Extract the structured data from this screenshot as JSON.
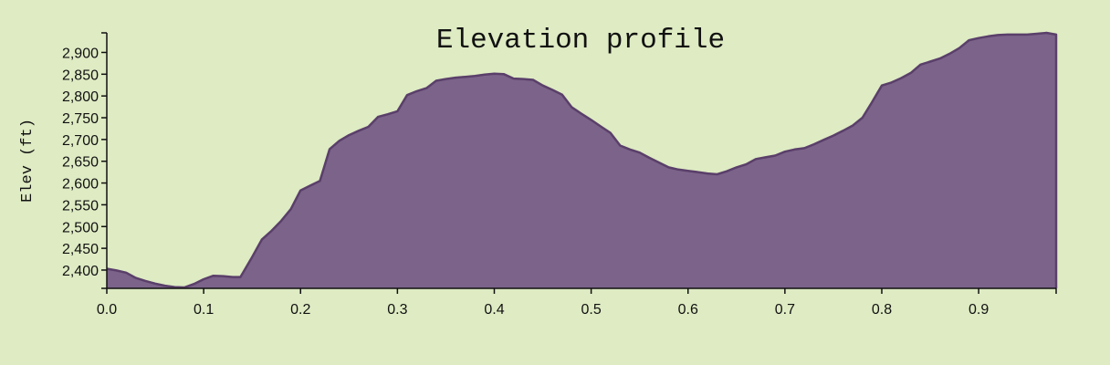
{
  "chart_data": {
    "type": "area",
    "title": "Elevation profile",
    "xlabel": "",
    "ylabel": "Elev (ft)",
    "xlim": [
      0,
      0.98
    ],
    "ylim": [
      2358,
      2945
    ],
    "grid": false,
    "legend": "none",
    "color": "#7b6389",
    "line_color": "#5a3f6a",
    "x_ticks": [
      0.0,
      0.1,
      0.2,
      0.3,
      0.4,
      0.5,
      0.6,
      0.7,
      0.8,
      0.9
    ],
    "x_tick_labels": [
      "0.0",
      "0.1",
      "0.2",
      "0.3",
      "0.4",
      "0.5",
      "0.6",
      "0.7",
      "0.8",
      "0.9"
    ],
    "y_ticks": [
      2400,
      2450,
      2500,
      2550,
      2600,
      2650,
      2700,
      2750,
      2800,
      2850,
      2900
    ],
    "y_tick_labels": [
      "2,400",
      "2,450",
      "2,500",
      "2,550",
      "2,600",
      "2,650",
      "2,700",
      "2,750",
      "2,800",
      "2,850",
      "2,900"
    ],
    "x": [
      0.0,
      0.01,
      0.02,
      0.03,
      0.04,
      0.05,
      0.06,
      0.07,
      0.08,
      0.09,
      0.1,
      0.11,
      0.12,
      0.13,
      0.138,
      0.15,
      0.16,
      0.17,
      0.18,
      0.19,
      0.2,
      0.21,
      0.22,
      0.23,
      0.24,
      0.25,
      0.26,
      0.27,
      0.28,
      0.29,
      0.3,
      0.31,
      0.32,
      0.33,
      0.34,
      0.35,
      0.36,
      0.37,
      0.38,
      0.39,
      0.4,
      0.41,
      0.42,
      0.43,
      0.44,
      0.45,
      0.46,
      0.47,
      0.48,
      0.49,
      0.5,
      0.51,
      0.52,
      0.53,
      0.54,
      0.55,
      0.56,
      0.57,
      0.58,
      0.59,
      0.6,
      0.61,
      0.62,
      0.63,
      0.64,
      0.65,
      0.66,
      0.67,
      0.68,
      0.69,
      0.7,
      0.71,
      0.72,
      0.73,
      0.74,
      0.75,
      0.76,
      0.77,
      0.78,
      0.79,
      0.8,
      0.81,
      0.82,
      0.83,
      0.84,
      0.85,
      0.86,
      0.87,
      0.88,
      0.89,
      0.9,
      0.91,
      0.92,
      0.93,
      0.94,
      0.95,
      0.96,
      0.97,
      0.98
    ],
    "values": [
      2403,
      2399,
      2394,
      2382,
      2375,
      2369,
      2364,
      2361,
      2360,
      2368,
      2379,
      2387,
      2386,
      2384,
      2384,
      2430,
      2470,
      2490,
      2513,
      2540,
      2583,
      2594,
      2605,
      2678,
      2697,
      2710,
      2720,
      2729,
      2752,
      2758,
      2765,
      2802,
      2811,
      2818,
      2835,
      2839,
      2842,
      2844,
      2846,
      2849,
      2851,
      2850,
      2840,
      2839,
      2837,
      2824,
      2814,
      2803,
      2774,
      2759,
      2745,
      2730,
      2715,
      2686,
      2677,
      2670,
      2658,
      2647,
      2636,
      2631,
      2628,
      2625,
      2622,
      2620,
      2627,
      2636,
      2643,
      2655,
      2659,
      2663,
      2672,
      2677,
      2680,
      2689,
      2699,
      2709,
      2720,
      2732,
      2750,
      2786,
      2824,
      2831,
      2841,
      2853,
      2872,
      2879,
      2886,
      2897,
      2910,
      2928,
      2933,
      2937,
      2940,
      2941,
      2941,
      2941,
      2943,
      2945,
      2941
    ]
  }
}
